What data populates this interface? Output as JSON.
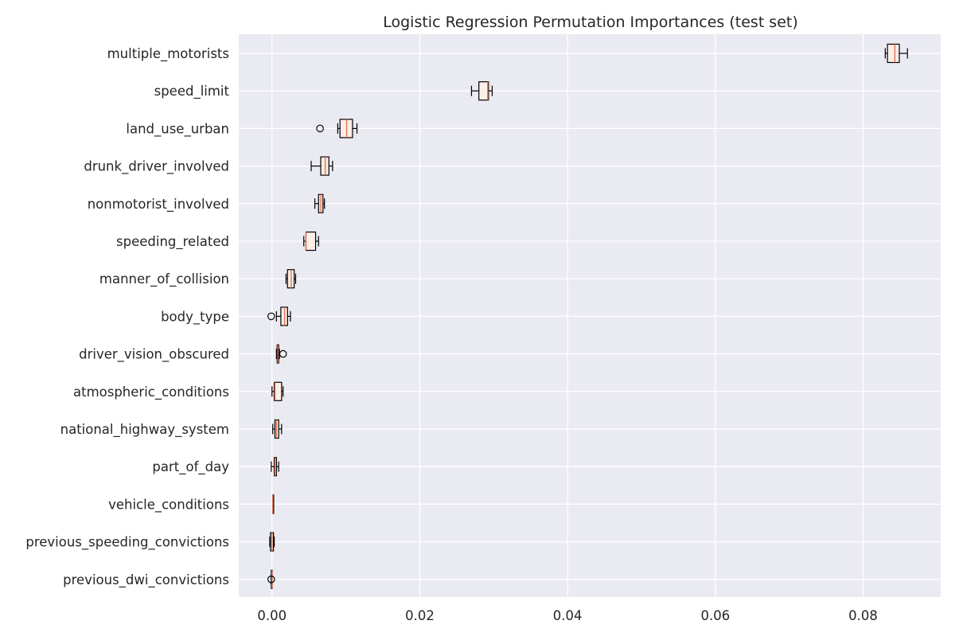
{
  "chart_data": {
    "type": "boxplot",
    "orientation": "horizontal",
    "title": "Logistic Regression Permutation Importances (test set)",
    "xlabel": "",
    "ylabel": "",
    "xlim": [
      -0.0045,
      0.0905
    ],
    "xticks": [
      0.0,
      0.02,
      0.04,
      0.06,
      0.08
    ],
    "xtick_labels": [
      "0.00",
      "0.02",
      "0.04",
      "0.06",
      "0.08"
    ],
    "grid": true,
    "style": "seaborn-darkgrid",
    "colors": {
      "background": "#eaeaf2",
      "grid": "#ffffff",
      "box_edge": "#000000",
      "median": "#e3754f",
      "box_fill": "#fdeee8",
      "text": "#262626"
    },
    "categories": [
      "multiple_motorists",
      "speed_limit",
      "land_use_urban",
      "drunk_driver_involved",
      "nonmotorist_involved",
      "speeding_related",
      "manner_of_collision",
      "body_type",
      "driver_vision_obscured",
      "atmospheric_conditions",
      "national_highway_system",
      "part_of_day",
      "vehicle_conditions",
      "previous_speeding_convictions",
      "previous_dwi_convictions"
    ],
    "boxes": [
      {
        "label": "multiple_motorists",
        "whislo": 0.083,
        "q1": 0.0833,
        "med": 0.0843,
        "q3": 0.0849,
        "whishi": 0.086,
        "fliers": []
      },
      {
        "label": "speed_limit",
        "whislo": 0.027,
        "q1": 0.028,
        "med": 0.0292,
        "q3": 0.0293,
        "whishi": 0.0298,
        "fliers": []
      },
      {
        "label": "land_use_urban",
        "whislo": 0.0089,
        "q1": 0.0092,
        "med": 0.0101,
        "q3": 0.0109,
        "whishi": 0.0115,
        "fliers": [
          0.0065
        ]
      },
      {
        "label": "drunk_driver_involved",
        "whislo": 0.0053,
        "q1": 0.0066,
        "med": 0.0072,
        "q3": 0.0077,
        "whishi": 0.0082,
        "fliers": []
      },
      {
        "label": "nonmotorist_involved",
        "whislo": 0.0058,
        "q1": 0.0063,
        "med": 0.0066,
        "q3": 0.0069,
        "whishi": 0.0071,
        "fliers": []
      },
      {
        "label": "speeding_related",
        "whislo": 0.0043,
        "q1": 0.0046,
        "med": 0.0046,
        "q3": 0.0059,
        "whishi": 0.0063,
        "fliers": []
      },
      {
        "label": "manner_of_collision",
        "whislo": 0.0019,
        "q1": 0.0021,
        "med": 0.0026,
        "q3": 0.003,
        "whishi": 0.0032,
        "fliers": []
      },
      {
        "label": "body_type",
        "whislo": 0.0006,
        "q1": 0.0012,
        "med": 0.0017,
        "q3": 0.0021,
        "whishi": 0.0025,
        "fliers": [
          -0.0001
        ]
      },
      {
        "label": "driver_vision_obscured",
        "whislo": 0.0006,
        "q1": 0.0007,
        "med": 0.0008,
        "q3": 0.0009,
        "whishi": 0.001,
        "fliers": [
          0.0015
        ]
      },
      {
        "label": "atmospheric_conditions",
        "whislo": 0.0,
        "q1": 0.0003,
        "med": 0.0004,
        "q3": 0.0013,
        "whishi": 0.0015,
        "fliers": []
      },
      {
        "label": "national_highway_system",
        "whislo": 0.0001,
        "q1": 0.0004,
        "med": 0.0006,
        "q3": 0.0009,
        "whishi": 0.0013,
        "fliers": []
      },
      {
        "label": "part_of_day",
        "whislo": -0.0001,
        "q1": 0.0003,
        "med": 0.0004,
        "q3": 0.0006,
        "whishi": 0.0009,
        "fliers": []
      },
      {
        "label": "vehicle_conditions",
        "whislo": 0.0001,
        "q1": 0.0001,
        "med": 0.0001,
        "q3": 0.0001,
        "whishi": 0.0001,
        "fliers": []
      },
      {
        "label": "previous_speeding_convictions",
        "whislo": -0.0003,
        "q1": -0.0002,
        "med": 0.0,
        "q3": 0.0002,
        "whishi": 0.0003,
        "fliers": []
      },
      {
        "label": "previous_dwi_convictions",
        "whislo": -0.0001,
        "q1": -0.0001,
        "med": 0.0,
        "q3": 0.0,
        "whishi": 0.0,
        "fliers": [
          -0.0001
        ]
      }
    ]
  }
}
